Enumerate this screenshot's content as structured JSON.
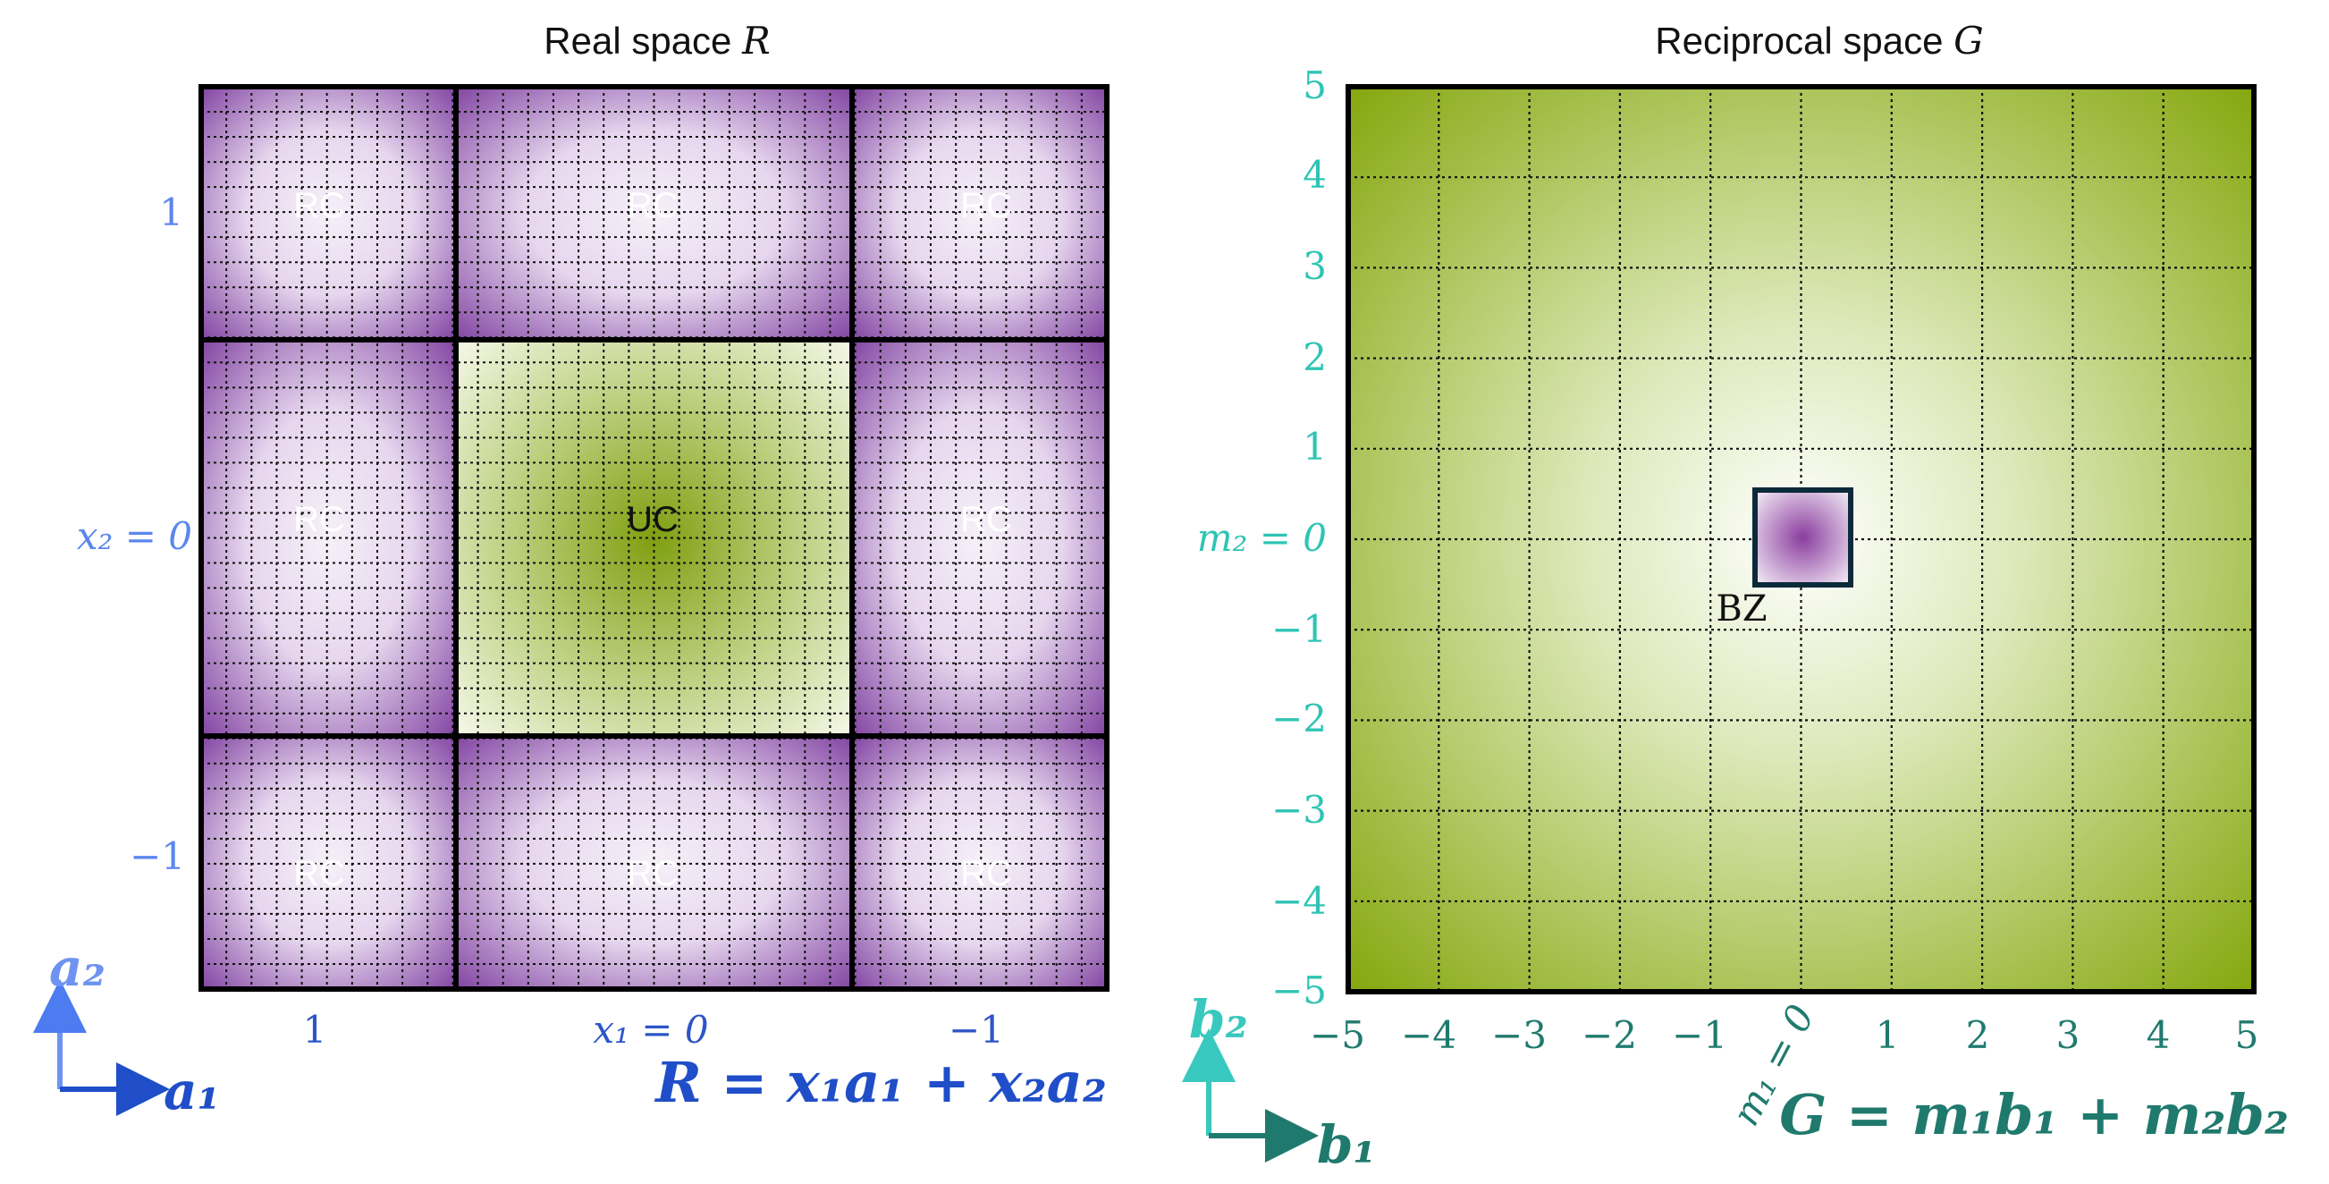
{
  "real_space": {
    "title_text": "Real space ",
    "title_symbol": "R",
    "cell_labels": [
      "RC",
      "RC",
      "RC",
      "RC",
      "UC",
      "RC",
      "RC",
      "RC",
      "RC"
    ],
    "x1_ticks": [
      "1",
      "x₁ = 0",
      "−1"
    ],
    "x2_ticks": [
      "1",
      "x₂ = 0",
      "−1"
    ],
    "axis_vector_1": "a₁",
    "axis_vector_2": "a₂",
    "formula": "R = x₁a₁ + x₂a₂",
    "colors": {
      "cell_edge": "#7a3e9d",
      "cell_center": "#f4eef6",
      "unit_cell_edge": "#f6f8e8",
      "unit_cell_center": "#86a818",
      "label_color": "#3f67d8",
      "formula_color": "#1f4ec8"
    }
  },
  "reciprocal_space": {
    "title_text": "Reciprocal space ",
    "title_symbol": "G",
    "m1_ticks": [
      "−5",
      "−4",
      "−3",
      "−2",
      "−1",
      "1",
      "2",
      "3",
      "4",
      "5"
    ],
    "m1_zero_label": "m₁ = 0",
    "m2_ticks": [
      "5",
      "4",
      "3",
      "2",
      "1",
      "m₂ = 0",
      "−1",
      "−2",
      "−3",
      "−4",
      "−5"
    ],
    "bz_label": "BZ",
    "axis_vector_1": "b₁",
    "axis_vector_2": "b₂",
    "formula": "G = m₁b₁ + m₂b₂",
    "colors": {
      "center": "#ffffff",
      "edge": "#86a810",
      "bz_center": "#8a3d9e",
      "tick_color": "#2fc4b4",
      "formula_color": "#1f7a6d"
    }
  }
}
